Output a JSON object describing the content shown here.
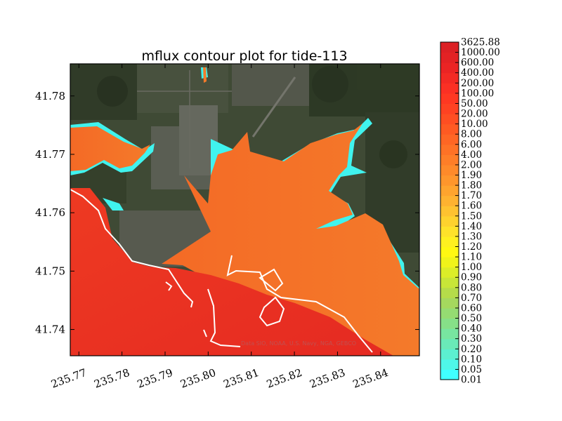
{
  "chart_data": {
    "type": "heatmap",
    "title": "mflux contour plot for tide-113",
    "xlabel": "",
    "ylabel": "",
    "x_ticks": [
      "235.77",
      "235.78",
      "235.79",
      "235.80",
      "235.81",
      "235.82",
      "235.83",
      "235.84"
    ],
    "y_ticks": [
      "41.74",
      "41.75",
      "41.76",
      "41.77",
      "41.78"
    ],
    "xlim": [
      235.768,
      235.849
    ],
    "ylim": [
      41.7355,
      41.7855
    ],
    "colorbar": {
      "levels": [
        "0.01",
        "0.05",
        "0.10",
        "0.20",
        "0.30",
        "0.40",
        "0.50",
        "0.60",
        "0.70",
        "0.80",
        "0.90",
        "1.00",
        "1.10",
        "1.20",
        "1.30",
        "1.40",
        "1.50",
        "1.60",
        "1.70",
        "1.80",
        "1.90",
        "2.00",
        "4.00",
        "6.00",
        "8.00",
        "10.00",
        "20.00",
        "50.00",
        "100.00",
        "200.00",
        "400.00",
        "600.00",
        "1000.00",
        "3625.88"
      ],
      "colors": [
        "#40ffff",
        "#4ff7e8",
        "#5cf0d0",
        "#6aeab8",
        "#78e5a0",
        "#86e088",
        "#95dc72",
        "#a5d85e",
        "#b5dc4a",
        "#c8e638",
        "#dcee28",
        "#f0f41a",
        "#fff812",
        "#fff020",
        "#ffe22a",
        "#ffd22e",
        "#ffc230",
        "#ffb230",
        "#ffa42e",
        "#ff962c",
        "#ff8a2a",
        "#ff7e28",
        "#ff7226",
        "#ff6624",
        "#ff5a22",
        "#ff4e22",
        "#ff4222",
        "#ff3822",
        "#fb3024",
        "#f32a24",
        "#eb2424",
        "#e32224",
        "#dc2024"
      ]
    },
    "basemap_credit": "Data SIO, NOAA, U.S. Navy, NGA, GEBCO"
  }
}
